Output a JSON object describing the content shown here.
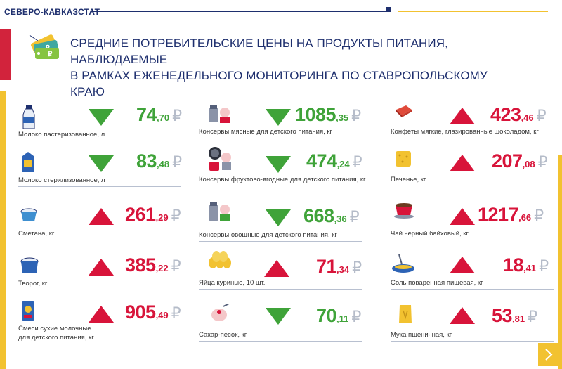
{
  "header": {
    "brand": "СЕВЕРО-КАВКАЗСТАТ",
    "title_line1": "СРЕДНИЕ ПОТРЕБИТЕЛЬСКИЕ ЦЕНЫ НА ПРОДУКТЫ ПИТАНИЯ, НАБЛЮДАЕМЫЕ",
    "title_line2": "В РАМКАХ ЕЖЕНЕДЕЛЬНОГО МОНИТОРИНГА ПО СТАВРОПОЛЬСКОМУ КРАЮ",
    "icon": "price-tags-icon"
  },
  "colors": {
    "navy": "#1e2f6e",
    "red": "#d8143a",
    "green": "#3fa339",
    "yellow": "#f2c230"
  },
  "currency": "₽",
  "items": [
    {
      "label": "Молоко пастеризованное, л",
      "int": "74",
      "dec": ",70",
      "trend": "down",
      "icon": "milk-bottle-icon"
    },
    {
      "label": "Молоко стерилизованное, л",
      "int": "83",
      "dec": ",48",
      "trend": "down",
      "icon": "milk-carton-icon"
    },
    {
      "label": "Сметана, кг",
      "int": "261",
      "dec": ",29",
      "trend": "up",
      "icon": "sour-cream-icon"
    },
    {
      "label": "Творог, кг",
      "int": "385",
      "dec": ",22",
      "trend": "up",
      "icon": "cottage-cheese-icon"
    },
    {
      "label": "Смеси сухие молочные",
      "label2": "для детского питания, кг",
      "int": "905",
      "dec": ",49",
      "trend": "up",
      "icon": "baby-formula-icon"
    },
    {
      "label": "Консервы мясные для детского питания, кг",
      "int": "1085",
      "dec": ",35",
      "trend": "down",
      "icon": "baby-food-meat-icon"
    },
    {
      "label": "Консервы фруктово-ягодные для детского питания, кг",
      "int": "474",
      "dec": ",24",
      "trend": "down",
      "icon": "baby-food-fruit-icon"
    },
    {
      "label": "Консервы овощные для детского питания, кг",
      "int": "668",
      "dec": ",36",
      "trend": "down",
      "icon": "baby-food-veg-icon"
    },
    {
      "label": "Яйца куриные, 10 шт.",
      "int": "71",
      "dec": ",34",
      "trend": "up",
      "icon": "eggs-icon"
    },
    {
      "label": "Сахар-песок, кг",
      "int": "70",
      "dec": ",11",
      "trend": "down",
      "icon": "sugar-icon"
    },
    {
      "label": "Конфеты мягкие, глазированные шоколадом, кг",
      "int": "423",
      "dec": ",46",
      "trend": "up",
      "icon": "candy-icon"
    },
    {
      "label": "Печенье, кг",
      "int": "207",
      "dec": ",08",
      "trend": "up",
      "icon": "cookie-icon"
    },
    {
      "label": "Чай черный байховый, кг",
      "int": "1217",
      "dec": ",66",
      "trend": "up",
      "icon": "tea-cup-icon"
    },
    {
      "label": "Соль поваренная пищевая, кг",
      "int": "18",
      "dec": ",41",
      "trend": "up",
      "icon": "salt-icon"
    },
    {
      "label": "Мука пшеничная, кг",
      "int": "53",
      "dec": ",81",
      "trend": "up",
      "icon": "flour-icon"
    }
  ],
  "nav": {
    "next_icon": "chevron-right-icon"
  }
}
